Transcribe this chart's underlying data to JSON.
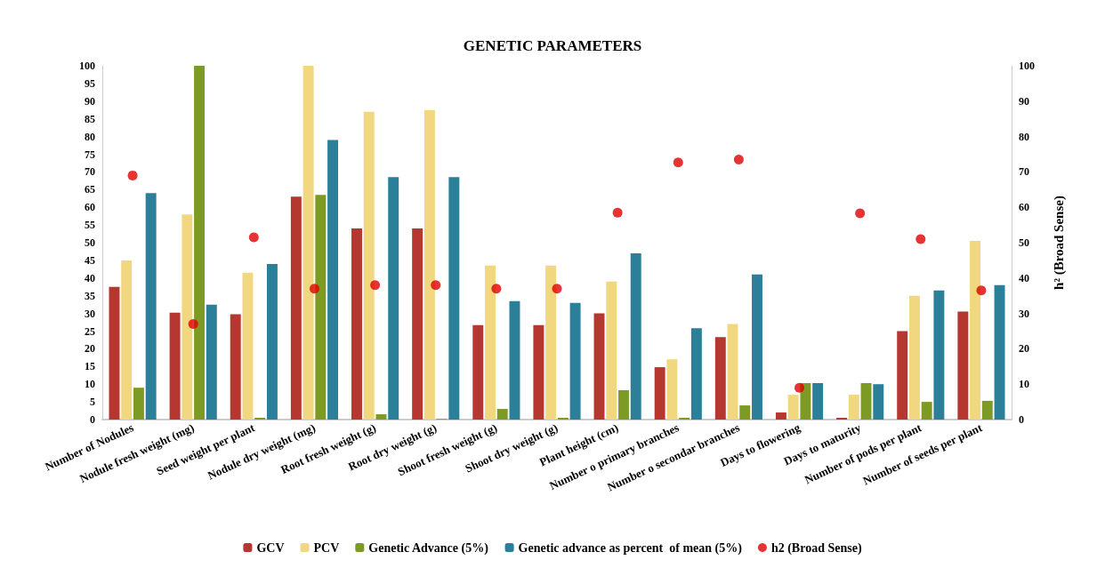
{
  "chart_data": {
    "type": "bar",
    "title": "GENETIC PARAMETERS",
    "y2label": "h² (Broad Sense)",
    "categories": [
      "Number of Nodules",
      "Nodule fresh weight (mg)",
      "Seed weight per plant",
      "Nodule dry weight (mg)",
      "Root fresh weight (g)",
      "Root dry weight (g)",
      "Shoot fresh weight (g)",
      "Shoot dry weight (g)",
      "Plant height (cm)",
      "Number o primary branches",
      "Number o secondar branches",
      "Days to flowering",
      "Days to maturity",
      "Number of pods per plant",
      "Number of seeds per plant"
    ],
    "series": [
      {
        "name": "GCV",
        "color": "#b5372f",
        "values": [
          37.5,
          30.2,
          29.8,
          63,
          54,
          54,
          26.7,
          26.7,
          30,
          14.8,
          23.3,
          2,
          0.5,
          25,
          30.5
        ]
      },
      {
        "name": "PCV",
        "color": "#f1d77f",
        "values": [
          45,
          58,
          41.5,
          100,
          87,
          87.5,
          43.5,
          43.5,
          39,
          17,
          27,
          7,
          7,
          35,
          50.5
        ]
      },
      {
        "name": "Genetic Advance (5%)",
        "color": "#7d9a25",
        "values": [
          9,
          100,
          0.5,
          63.5,
          1.5,
          0.2,
          3,
          0.5,
          8.3,
          0.5,
          4,
          10.3,
          10.3,
          5,
          5.3
        ]
      },
      {
        "name": "Genetic advance as percent  of mean (5%)",
        "color": "#2b7f98",
        "values": [
          64,
          32.5,
          44,
          79,
          68.5,
          68.5,
          33.5,
          33,
          47,
          25.8,
          41,
          10.3,
          10,
          36.5,
          38
        ]
      },
      {
        "name": "h2 (Broad Sense)",
        "type": "scatter",
        "color": "#e00000",
        "values": [
          69,
          27,
          51.5,
          37,
          38,
          38,
          37,
          37,
          58.5,
          72.7,
          73.5,
          9,
          58.3,
          51,
          36.5
        ]
      }
    ],
    "ylim": [
      0,
      100
    ],
    "yticks": [
      0,
      5,
      10,
      15,
      20,
      25,
      30,
      35,
      40,
      45,
      50,
      55,
      60,
      65,
      70,
      75,
      80,
      85,
      90,
      95,
      100
    ],
    "y2lim": [
      0,
      100
    ],
    "y2ticks": [
      0,
      10,
      20,
      30,
      40,
      50,
      60,
      70,
      80,
      90,
      100
    ],
    "grid": false,
    "legend": "bottom",
    "marker": "circle"
  }
}
